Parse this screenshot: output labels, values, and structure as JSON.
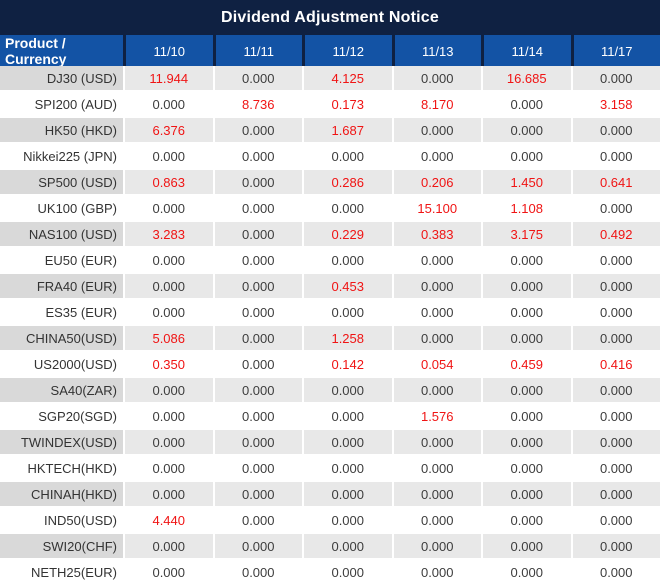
{
  "title": "Dividend Adjustment Notice",
  "table": {
    "header": {
      "product_label": "Product / Currency",
      "dates": [
        "11/10",
        "11/11",
        "11/12",
        "11/13",
        "11/14",
        "11/17"
      ]
    },
    "rows": [
      {
        "product": "DJ30 (USD)",
        "values": [
          "11.944",
          "0.000",
          "4.125",
          "0.000",
          "16.685",
          "0.000"
        ]
      },
      {
        "product": "SPI200 (AUD)",
        "values": [
          "0.000",
          "8.736",
          "0.173",
          "8.170",
          "0.000",
          "3.158"
        ]
      },
      {
        "product": "HK50 (HKD)",
        "values": [
          "6.376",
          "0.000",
          "1.687",
          "0.000",
          "0.000",
          "0.000"
        ]
      },
      {
        "product": "Nikkei225 (JPN)",
        "values": [
          "0.000",
          "0.000",
          "0.000",
          "0.000",
          "0.000",
          "0.000"
        ]
      },
      {
        "product": "SP500 (USD)",
        "values": [
          "0.863",
          "0.000",
          "0.286",
          "0.206",
          "1.450",
          "0.641"
        ]
      },
      {
        "product": "UK100 (GBP)",
        "values": [
          "0.000",
          "0.000",
          "0.000",
          "15.100",
          "1.108",
          "0.000"
        ]
      },
      {
        "product": "NAS100 (USD)",
        "values": [
          "3.283",
          "0.000",
          "0.229",
          "0.383",
          "3.175",
          "0.492"
        ]
      },
      {
        "product": "EU50 (EUR)",
        "values": [
          "0.000",
          "0.000",
          "0.000",
          "0.000",
          "0.000",
          "0.000"
        ]
      },
      {
        "product": "FRA40 (EUR)",
        "values": [
          "0.000",
          "0.000",
          "0.453",
          "0.000",
          "0.000",
          "0.000"
        ]
      },
      {
        "product": "ES35 (EUR)",
        "values": [
          "0.000",
          "0.000",
          "0.000",
          "0.000",
          "0.000",
          "0.000"
        ]
      },
      {
        "product": "CHINA50(USD)",
        "values": [
          "5.086",
          "0.000",
          "1.258",
          "0.000",
          "0.000",
          "0.000"
        ]
      },
      {
        "product": "US2000(USD)",
        "values": [
          "0.350",
          "0.000",
          "0.142",
          "0.054",
          "0.459",
          "0.416"
        ]
      },
      {
        "product": "SA40(ZAR)",
        "values": [
          "0.000",
          "0.000",
          "0.000",
          "0.000",
          "0.000",
          "0.000"
        ]
      },
      {
        "product": "SGP20(SGD)",
        "values": [
          "0.000",
          "0.000",
          "0.000",
          "1.576",
          "0.000",
          "0.000"
        ]
      },
      {
        "product": "TWINDEX(USD)",
        "values": [
          "0.000",
          "0.000",
          "0.000",
          "0.000",
          "0.000",
          "0.000"
        ]
      },
      {
        "product": "HKTECH(HKD)",
        "values": [
          "0.000",
          "0.000",
          "0.000",
          "0.000",
          "0.000",
          "0.000"
        ]
      },
      {
        "product": "CHINAH(HKD)",
        "values": [
          "0.000",
          "0.000",
          "0.000",
          "0.000",
          "0.000",
          "0.000"
        ]
      },
      {
        "product": "IND50(USD)",
        "values": [
          "4.440",
          "0.000",
          "0.000",
          "0.000",
          "0.000",
          "0.000"
        ]
      },
      {
        "product": "SWI20(CHF)",
        "values": [
          "0.000",
          "0.000",
          "0.000",
          "0.000",
          "0.000",
          "0.000"
        ]
      },
      {
        "product": "NETH25(EUR)",
        "values": [
          "0.000",
          "0.000",
          "0.000",
          "0.000",
          "0.000",
          "0.000"
        ]
      }
    ]
  },
  "colors": {
    "title_bg": "#0f2142",
    "header_cell_bg": "#1353a5",
    "header_text": "#ffffff",
    "alt_row_label_bg": "#d9d9d9",
    "alt_row_value_bg": "#e8e8e8",
    "zero_value_text": "#3d3d3d",
    "nonzero_value_text": "#f01414"
  }
}
